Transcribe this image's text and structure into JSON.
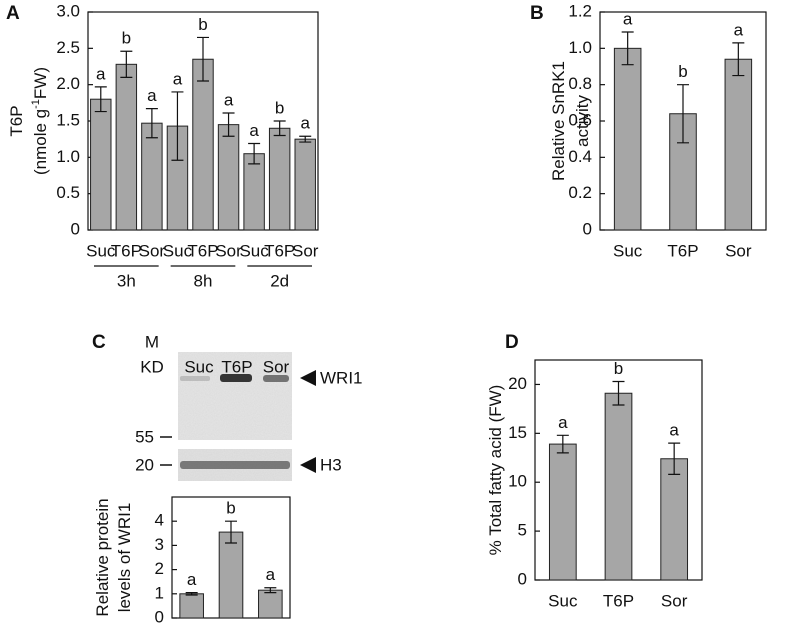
{
  "chart_data": [
    {
      "type": "bar",
      "panel": "A",
      "y_label_lines": [
        [
          "T6P"
        ],
        [
          "(nmole g",
          "-1",
          "FW)"
        ]
      ],
      "categories": [
        "Suc",
        "T6P",
        "Sor",
        "Suc",
        "T6P",
        "Sor",
        "Suc",
        "T6P",
        "Sor"
      ],
      "groups": [
        "3h",
        "8h",
        "2d"
      ],
      "values": [
        1.8,
        2.28,
        1.47,
        1.43,
        2.35,
        1.45,
        1.05,
        1.4,
        1.25
      ],
      "errors": [
        0.17,
        0.18,
        0.2,
        0.47,
        0.3,
        0.16,
        0.14,
        0.1,
        0.04
      ],
      "annotations": [
        "a",
        "b",
        "a",
        "a",
        "b",
        "a",
        "a",
        "b",
        "a"
      ],
      "color": "#a6a6a6",
      "ylim": [
        0,
        3
      ],
      "yticks": [
        0,
        0.5,
        {
          "value": 1,
          "label": "1.0"
        },
        1.5,
        {
          "value": 2,
          "label": "2.0"
        },
        2.5,
        {
          "value": 3,
          "label": "3.0"
        }
      ]
    },
    {
      "type": "bar",
      "panel": "B",
      "y_label_lines": [
        [
          "Relative SnRK1"
        ],
        [
          "activity"
        ]
      ],
      "categories": [
        "Suc",
        "T6P",
        "Sor"
      ],
      "values": [
        1.0,
        0.64,
        0.94
      ],
      "errors": [
        0.09,
        0.16,
        0.09
      ],
      "annotations": [
        "a",
        "b",
        "a"
      ],
      "color": "#a6a6a6",
      "ylim": [
        0,
        1.2
      ],
      "yticks": [
        0,
        0.2,
        0.4,
        0.6,
        0.8,
        {
          "value": 1,
          "label": "1.0"
        },
        1.2
      ]
    },
    {
      "type": "bar",
      "panel": "C",
      "y_label_lines": [
        [
          "Relative protein"
        ],
        [
          "levels of WRI1"
        ]
      ],
      "categories": [
        null,
        null,
        null
      ],
      "values": [
        1.0,
        3.55,
        1.15
      ],
      "errors": [
        0.05,
        0.45,
        0.1
      ],
      "annotations": [
        "a",
        "b",
        "a"
      ],
      "color": "#a6a6a6",
      "ylim": [
        0,
        5
      ],
      "yticks": [
        0,
        1,
        2,
        3,
        4
      ]
    },
    {
      "type": "bar",
      "panel": "D",
      "y_label_lines": [
        [
          "% Total fatty acid (FW)"
        ]
      ],
      "categories": [
        "Suc",
        "T6P",
        "Sor"
      ],
      "values": [
        13.9,
        19.1,
        12.4
      ],
      "errors": [
        0.9,
        1.2,
        1.6
      ],
      "annotations": [
        "a",
        "b",
        "a"
      ],
      "color": "#a6a6a6",
      "ylim": [
        0,
        22.5
      ],
      "yticks": [
        0,
        5,
        10,
        15,
        20
      ]
    }
  ],
  "blot": {
    "marker_lines": [
      "M",
      "KD"
    ],
    "lanes": [
      "Suc",
      "T6P",
      "Sor"
    ],
    "bands": [
      "WRI1",
      "H3"
    ],
    "sizes": [
      "55",
      "20"
    ]
  }
}
